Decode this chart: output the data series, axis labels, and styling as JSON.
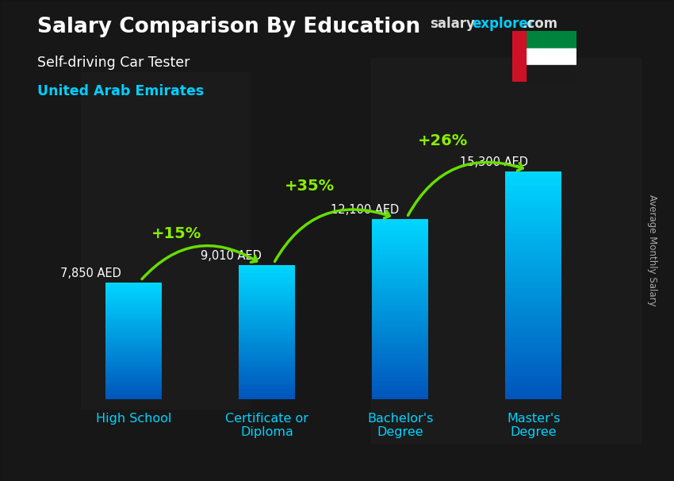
{
  "title_salary": "Salary Comparison By Education",
  "subtitle_job": "Self-driving Car Tester",
  "subtitle_country": "United Arab Emirates",
  "ylabel": "Average Monthly Salary",
  "categories": [
    "High School",
    "Certificate or\nDiploma",
    "Bachelor's\nDegree",
    "Master's\nDegree"
  ],
  "values": [
    7850,
    9010,
    12100,
    15300
  ],
  "labels": [
    "7,850 AED",
    "9,010 AED",
    "12,100 AED",
    "15,300 AED"
  ],
  "pct_labels": [
    "+15%",
    "+35%",
    "+26%"
  ],
  "bar_color_top": "#00d4ff",
  "bar_color_bottom": "#0060bb",
  "bg_color": "#1a1a2e",
  "title_color": "#ffffff",
  "subtitle_job_color": "#ffffff",
  "subtitle_country_color": "#00cfff",
  "label_color": "#ffffff",
  "pct_color": "#88ee00",
  "arrow_color": "#66dd00",
  "watermark_salary_color": "#dddddd",
  "watermark_explorer_color": "#00cfff",
  "ylim": [
    0,
    20000
  ],
  "bar_width": 0.42
}
